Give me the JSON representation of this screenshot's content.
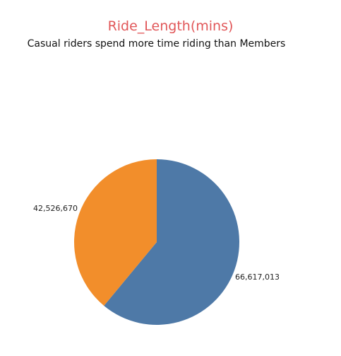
{
  "chart_data": {
    "type": "pie",
    "title": "Ride_Length(mins)",
    "subtitle": "Casual riders spend more time riding than Members",
    "slices": [
      {
        "value": 66617013,
        "label": "66,617,013",
        "color": "#4e79a7"
      },
      {
        "value": 42526670,
        "label": "42,526,670",
        "color": "#f28e2b"
      }
    ],
    "start": "top",
    "direction": "clockwise",
    "title_color": "#e15759"
  }
}
